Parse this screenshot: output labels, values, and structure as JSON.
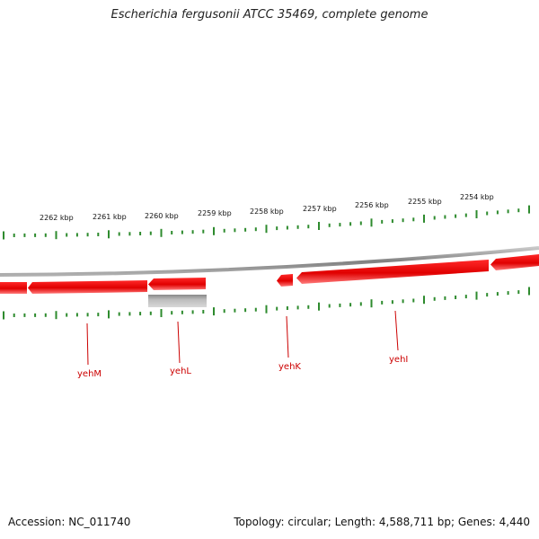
{
  "title": "Escherichia fergusonii ATCC 35469, complete genome",
  "footer": {
    "accession": "Accession: NC_011740",
    "summary": "Topology: circular; Length: 4,588,711 bp; Genes: 4,440"
  },
  "ruler_labels": [
    "2262 kbp",
    "2261 kbp",
    "2260 kbp",
    "2259 kbp",
    "2258 kbp",
    "2257 kbp",
    "2256 kbp",
    "2255 kbp",
    "2254 kbp"
  ],
  "genes": [
    {
      "name": "yehM"
    },
    {
      "name": "yehL"
    },
    {
      "name": "yehK"
    },
    {
      "name": "yehI"
    }
  ],
  "colors": {
    "gene": "#ee0000",
    "gene_highlight": "#ff6666",
    "rna_feature": "#aaaaaa",
    "backbone": "#888888",
    "tick": "#2e8b2e",
    "label": "#cc0000"
  }
}
